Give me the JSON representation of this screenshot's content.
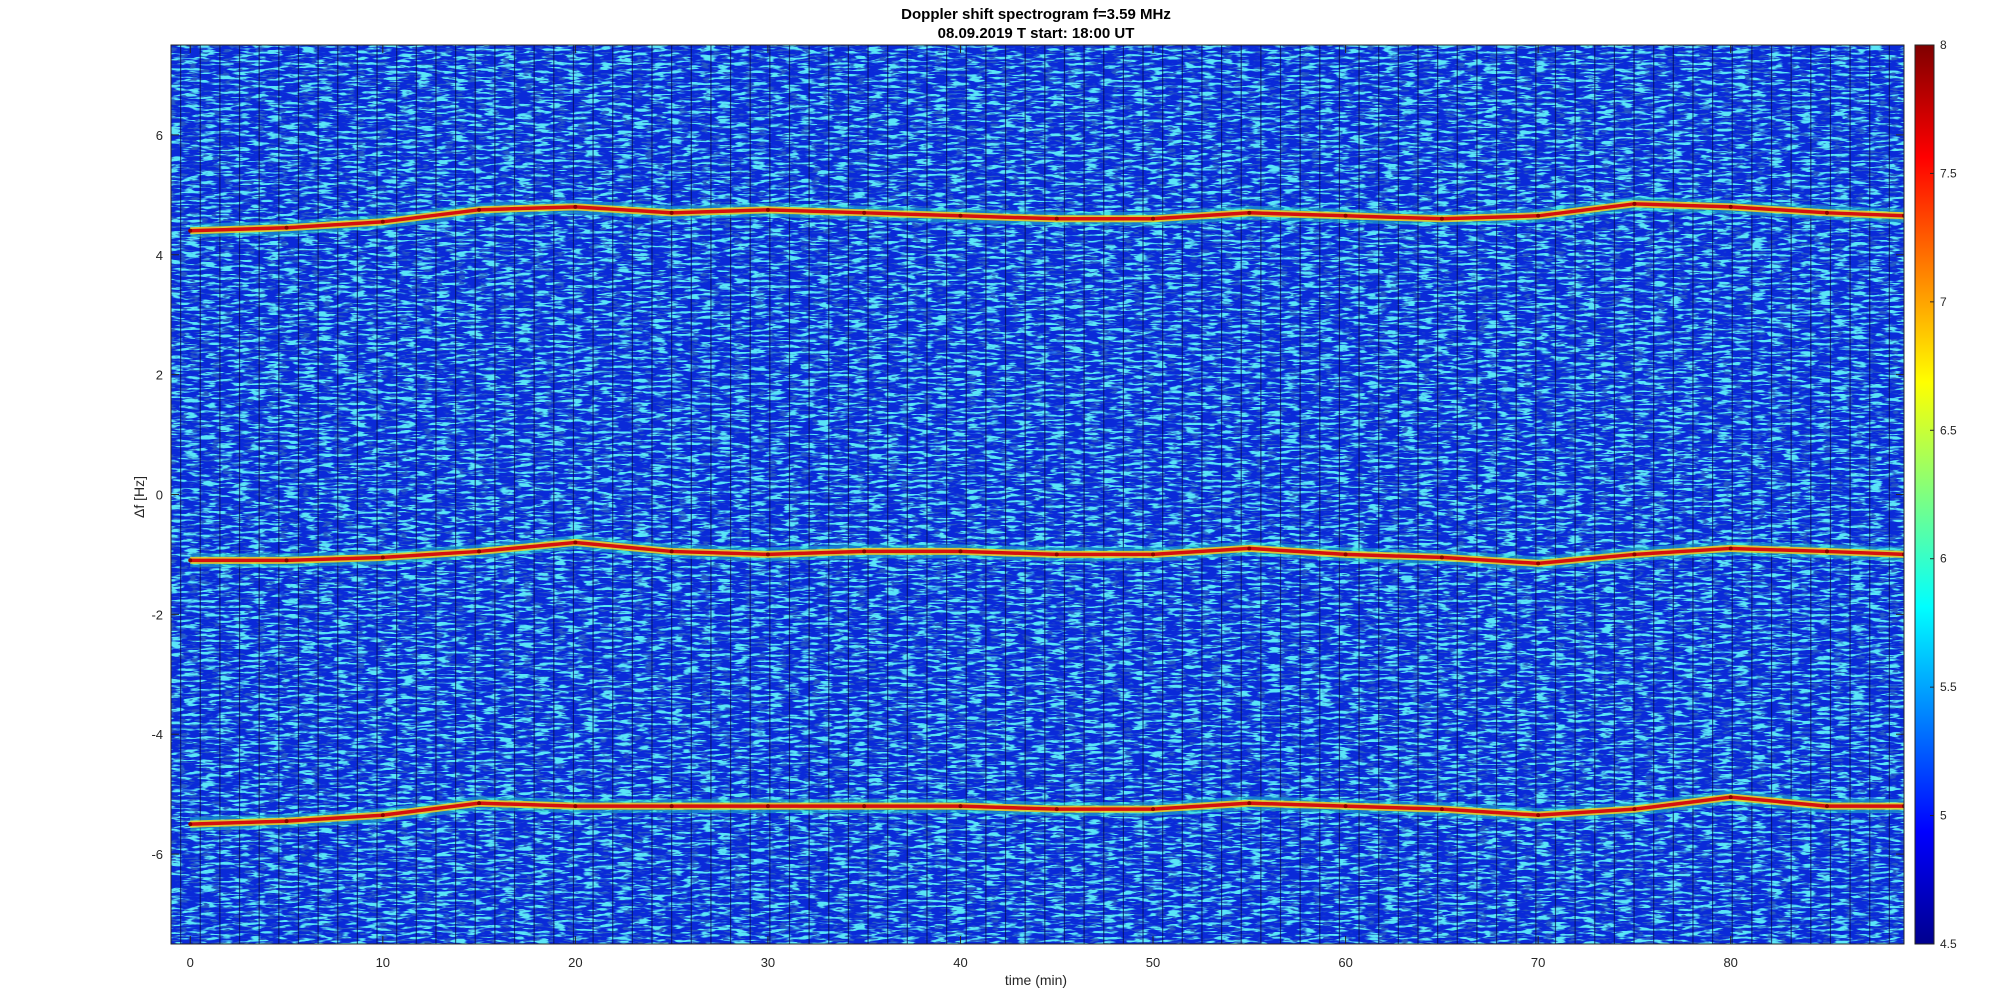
{
  "chart_data": {
    "type": "heatmap",
    "title": "Doppler shift spectrogram f=3.59 MHz",
    "subtitle": "08.09.2019   T start: 18:00 UT",
    "xlabel": "time (min)",
    "ylabel": "Δf [Hz]",
    "xlim": [
      -1,
      89
    ],
    "ylim": [
      -7.5,
      7.5
    ],
    "x_ticks": [
      0,
      10,
      20,
      30,
      40,
      50,
      60,
      70,
      80
    ],
    "y_ticks": [
      -6,
      -4,
      -2,
      0,
      2,
      4,
      6
    ],
    "colormap": "jet",
    "color_range": [
      4.5,
      8
    ],
    "colorbar_ticks": [
      4.5,
      5,
      5.5,
      6,
      6.5,
      7,
      7.5,
      8
    ],
    "colorbar_placement": "right",
    "grid": false,
    "series": [
      {
        "x": [
          0,
          5,
          10,
          15,
          20,
          25,
          30,
          35,
          40,
          45,
          50,
          55,
          60,
          65,
          70,
          75,
          80,
          85,
          89
        ],
        "y": [
          4.4,
          4.45,
          4.55,
          4.75,
          4.8,
          4.7,
          4.75,
          4.7,
          4.65,
          4.6,
          4.6,
          4.7,
          4.65,
          4.6,
          4.65,
          4.85,
          4.8,
          4.7,
          4.65
        ]
      },
      {
        "x": [
          0,
          5,
          10,
          15,
          20,
          25,
          30,
          35,
          40,
          45,
          50,
          55,
          60,
          65,
          70,
          75,
          80,
          85,
          89
        ],
        "y": [
          -1.1,
          -1.1,
          -1.05,
          -0.95,
          -0.8,
          -0.95,
          -1.0,
          -0.95,
          -0.95,
          -1.0,
          -1.0,
          -0.9,
          -1.0,
          -1.05,
          -1.15,
          -1.0,
          -0.9,
          -0.95,
          -1.0
        ]
      },
      {
        "x": [
          0,
          5,
          10,
          15,
          20,
          25,
          30,
          35,
          40,
          45,
          50,
          55,
          60,
          65,
          70,
          75,
          80,
          85,
          89
        ],
        "y": [
          -5.5,
          -5.45,
          -5.35,
          -5.15,
          -5.2,
          -5.2,
          -5.2,
          -5.2,
          -5.2,
          -5.25,
          -5.25,
          -5.15,
          -5.2,
          -5.25,
          -5.35,
          -5.25,
          -5.05,
          -5.2,
          -5.2
        ]
      }
    ]
  },
  "colors": {
    "background_low": "#0a2ad8",
    "noise_high": "#19c8ee",
    "trace_core": "#d41010",
    "trace_edge": "#f7d21a"
  }
}
